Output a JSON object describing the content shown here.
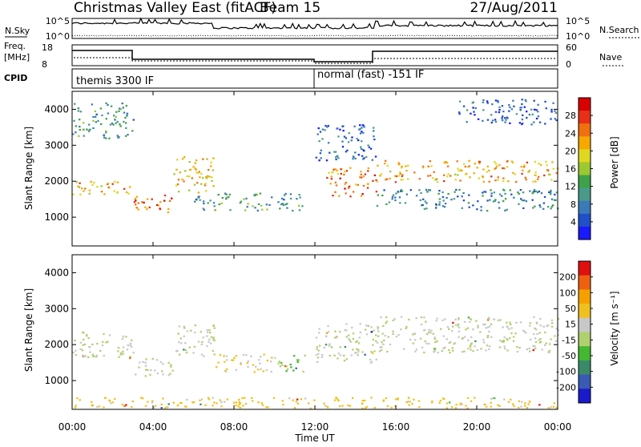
{
  "header": {
    "title": "Christmas Valley East (fitACF)",
    "beam": "Beam 15",
    "date": "27/Aug/2011"
  },
  "nsky_panel": {
    "label": "N.Sky",
    "right_label": "N.Search",
    "left_ticks": [
      "10^5",
      "10^0"
    ],
    "right_ticks": [
      "10^5",
      "10^0"
    ]
  },
  "freq_panel": {
    "label_line1": "Freq.",
    "label_line2": "[MHz]",
    "left_ticks": [
      "18",
      "8"
    ],
    "right_ticks": [
      "60",
      "0"
    ],
    "right_label": "Nave"
  },
  "cpid_panel": {
    "label": "CPID",
    "modes": [
      "themis 3300 IF",
      "normal (fast) -151 IF"
    ]
  },
  "chart_data": [
    {
      "type": "heatmap",
      "name": "power",
      "ylabel": "Slant Range [km]",
      "yticks": [
        "1000",
        "2000",
        "3000",
        "4000"
      ],
      "ylim": [
        200,
        4500
      ],
      "colorbar_label": "Power [dB]",
      "colorbar_ticks": [
        "4",
        "8",
        "12",
        "16",
        "20",
        "24",
        "28"
      ],
      "colorbar_colors": [
        "#1a1aff",
        "#2050c8",
        "#3a7ab8",
        "#4a9a8a",
        "#3fa24a",
        "#9cc830",
        "#e0d820",
        "#f6a800",
        "#f07010",
        "#e83018",
        "#d80000"
      ],
      "echo_bands": [
        {
          "t_start": 0.0,
          "t_end": 3.0,
          "range_low": 1650,
          "range_high": 2050,
          "power_db": 22
        },
        {
          "t_start": 3.0,
          "t_end": 5.0,
          "range_low": 1150,
          "range_high": 1650,
          "power_db": 25
        },
        {
          "t_start": 5.0,
          "t_end": 7.0,
          "range_low": 1700,
          "range_high": 2700,
          "power_db": 20
        },
        {
          "t_start": 6.0,
          "t_end": 11.5,
          "range_low": 1200,
          "range_high": 1700,
          "power_db": 11
        },
        {
          "t_start": 12.5,
          "t_end": 15.0,
          "range_low": 1600,
          "range_high": 2400,
          "power_db": 24
        },
        {
          "t_start": 15.0,
          "t_end": 24.0,
          "range_low": 2000,
          "range_high": 2600,
          "power_db": 22
        },
        {
          "t_start": 0.0,
          "t_end": 3.0,
          "range_low": 3200,
          "range_high": 4200,
          "power_db": 11
        },
        {
          "t_start": 12.0,
          "t_end": 15.0,
          "range_low": 2600,
          "range_high": 3600,
          "power_db": 6
        },
        {
          "t_start": 15.0,
          "t_end": 24.0,
          "range_low": 1200,
          "range_high": 1800,
          "power_db": 9
        },
        {
          "t_start": 19.0,
          "t_end": 24.0,
          "range_low": 3600,
          "range_high": 4300,
          "power_db": 6
        }
      ]
    },
    {
      "type": "heatmap",
      "name": "velocity",
      "ylabel": "Slant Range [km]",
      "yticks": [
        "1000",
        "2000",
        "3000",
        "4000"
      ],
      "ylim": [
        200,
        4500
      ],
      "colorbar_label": "Velocity [m s⁻¹]",
      "colorbar_ticks": [
        "200",
        "100",
        "50",
        "15",
        "-15",
        "-50",
        "-100",
        "-200"
      ],
      "colorbar_colors": [
        "#1a1acc",
        "#3a5ab4",
        "#3a8a6a",
        "#44b830",
        "#b0d070",
        "#c8c8c8",
        "#f0c020",
        "#f6a000",
        "#ee6010",
        "#e01010"
      ],
      "echo_bands": [
        {
          "t_start": 0.0,
          "t_end": 3.0,
          "range_low": 1650,
          "range_high": 2400,
          "velocity": 0
        },
        {
          "t_start": 3.0,
          "t_end": 5.0,
          "range_low": 1150,
          "range_high": 1650,
          "velocity": 0
        },
        {
          "t_start": 5.0,
          "t_end": 7.0,
          "range_low": 1700,
          "range_high": 2600,
          "velocity": 0
        },
        {
          "t_start": 7.0,
          "t_end": 10.0,
          "range_low": 1250,
          "range_high": 1750,
          "velocity": -40
        },
        {
          "t_start": 10.0,
          "t_end": 11.5,
          "range_low": 1250,
          "range_high": 1750,
          "velocity": 40
        },
        {
          "t_start": 12.0,
          "t_end": 15.0,
          "range_low": 1500,
          "range_high": 2600,
          "velocity": 0
        },
        {
          "t_start": 15.0,
          "t_end": 24.0,
          "range_low": 1800,
          "range_high": 2800,
          "velocity": 0
        },
        {
          "t_start": 0.0,
          "t_end": 24.0,
          "range_low": 250,
          "range_high": 550,
          "velocity": -60
        }
      ]
    }
  ],
  "time_axis": {
    "label": "Time UT",
    "ticks": [
      "00:00",
      "04:00",
      "08:00",
      "12:00",
      "16:00",
      "20:00",
      "00:00"
    ],
    "range_hours": [
      0,
      24
    ]
  }
}
